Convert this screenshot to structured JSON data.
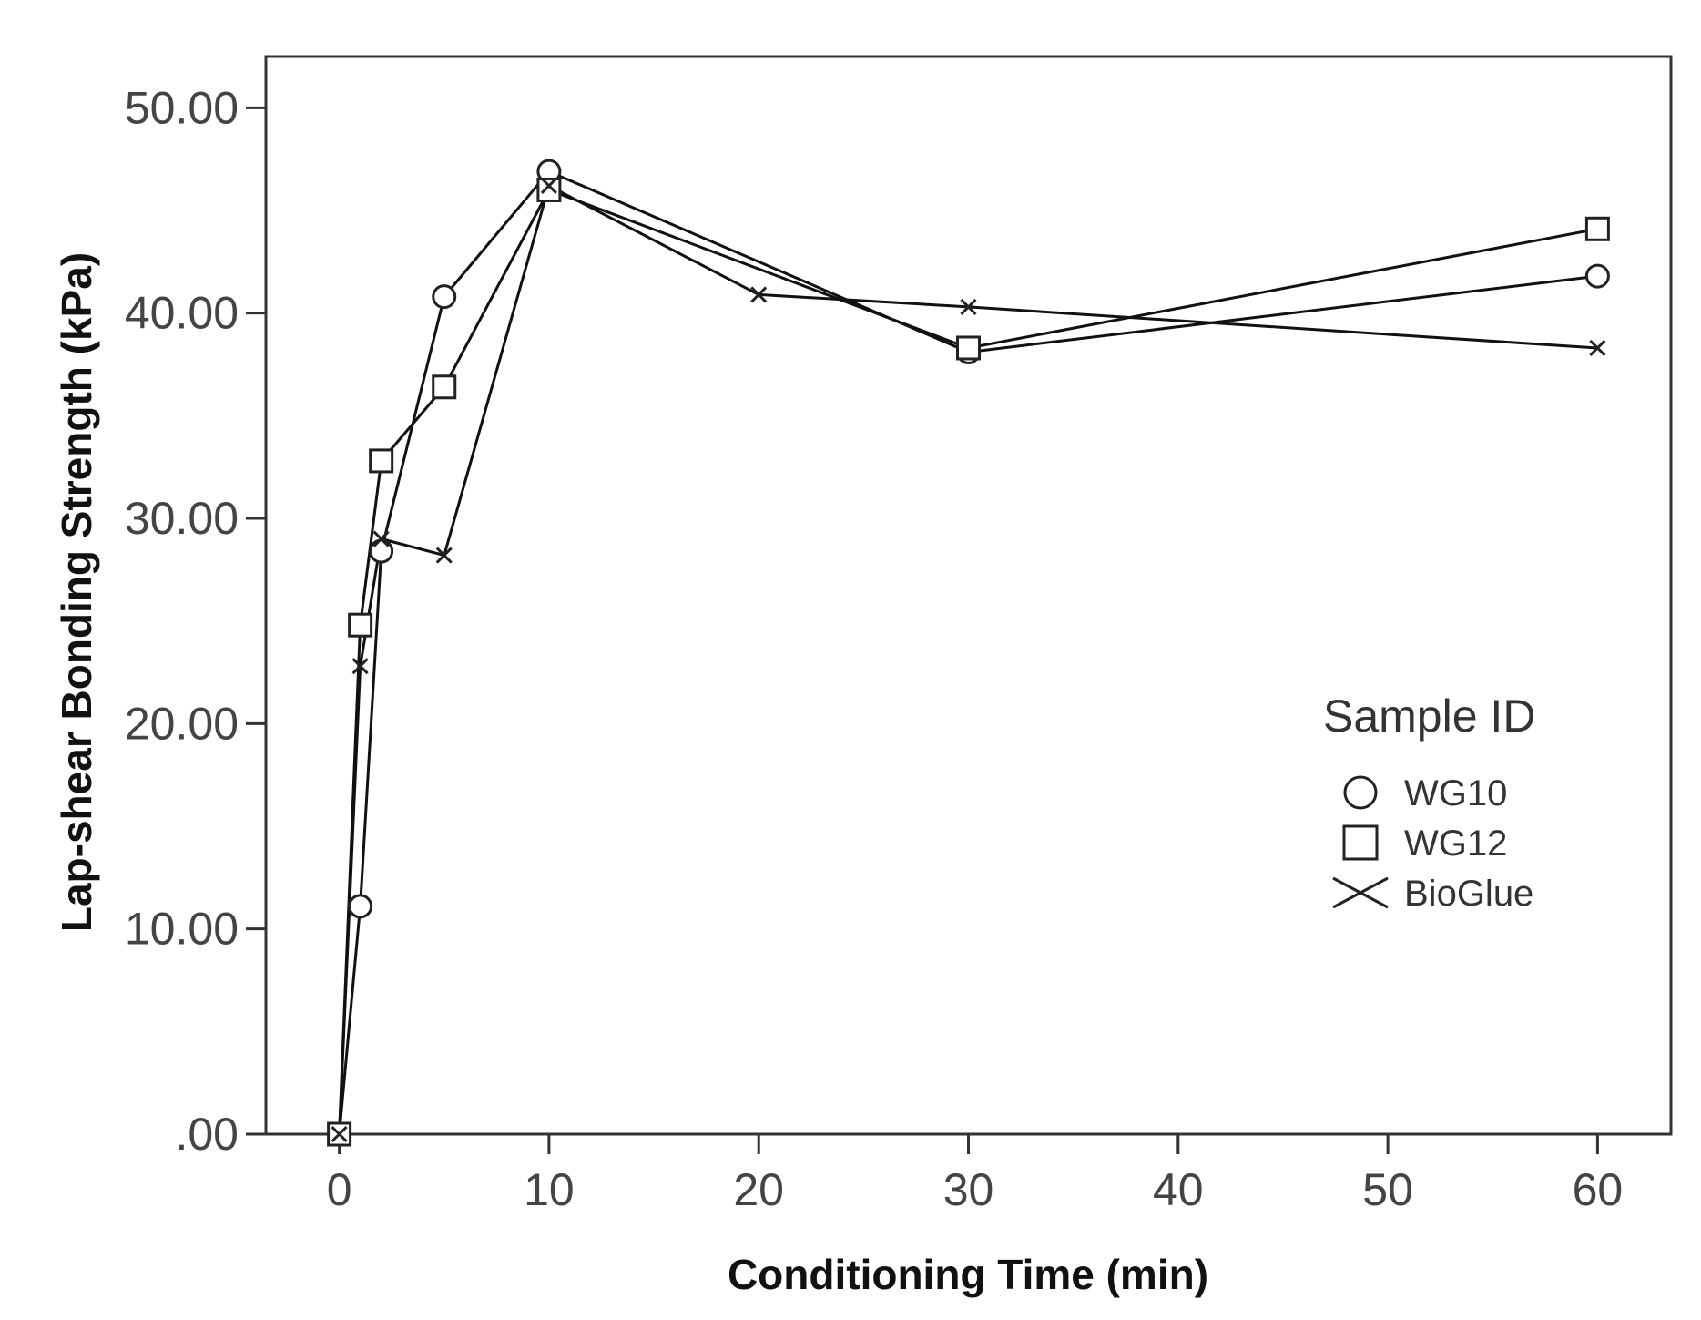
{
  "chart_data": {
    "type": "line",
    "title": "",
    "xlabel": "Conditioning Time (min)",
    "ylabel": "Lap-shear Bonding Strength (kPa)",
    "xlim": [
      -3.5,
      63.5
    ],
    "ylim": [
      0,
      52.5
    ],
    "xticks": [
      0,
      10,
      20,
      30,
      40,
      50,
      60
    ],
    "xtick_labels": [
      "0",
      "10",
      "20",
      "30",
      "40",
      "50",
      "60"
    ],
    "yticks": [
      0,
      10,
      20,
      30,
      40,
      50
    ],
    "ytick_labels": [
      ".00",
      "10.00",
      "20.00",
      "30.00",
      "40.00",
      "50.00"
    ],
    "grid": false,
    "legend": {
      "title": "Sample ID",
      "position": "right-middle"
    },
    "series": [
      {
        "name": "WG10",
        "marker": "circle",
        "x": [
          0,
          1,
          2,
          5,
          10,
          30,
          60
        ],
        "y": [
          0.0,
          11.1,
          28.4,
          40.8,
          46.9,
          38.1,
          41.8
        ]
      },
      {
        "name": "WG12",
        "marker": "square",
        "x": [
          0,
          1,
          2,
          5,
          10,
          30,
          60
        ],
        "y": [
          0.0,
          24.8,
          32.8,
          36.4,
          46.0,
          38.3,
          44.1
        ]
      },
      {
        "name": "BioGlue",
        "marker": "x",
        "x": [
          0,
          1,
          2,
          5,
          10,
          20,
          30,
          60
        ],
        "y": [
          0.0,
          22.8,
          29.0,
          28.2,
          46.2,
          40.9,
          40.3,
          38.3
        ]
      }
    ]
  }
}
